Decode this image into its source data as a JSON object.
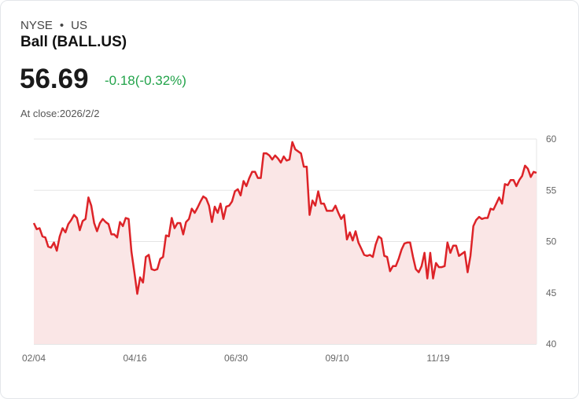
{
  "header": {
    "exchange": "NYSE",
    "separator": "•",
    "country": "US",
    "title": "Ball (BALL.US)",
    "price": "56.69",
    "change": "-0.18(-0.32%)",
    "close_label": "At close:2026/2/2"
  },
  "colors": {
    "line": "#dd2328",
    "fill": "#fae6e6",
    "change": "#22a34a"
  },
  "chart_data": {
    "type": "area",
    "title": "",
    "xlabel": "",
    "ylabel": "",
    "ylim": [
      40,
      60
    ],
    "yticks": [
      "60",
      "55",
      "50",
      "45",
      "40"
    ],
    "xticks": [
      "02/04",
      "04/16",
      "06/30",
      "09/10",
      "11/19"
    ],
    "grid": true,
    "values": [
      51.8,
      51.2,
      51.3,
      50.5,
      50.4,
      49.5,
      49.4,
      49.9,
      49.1,
      50.5,
      51.3,
      50.9,
      51.7,
      52.1,
      52.6,
      52.3,
      51.1,
      52.0,
      52.2,
      54.3,
      53.5,
      51.8,
      51.0,
      51.8,
      52.2,
      51.9,
      51.7,
      50.7,
      50.7,
      50.4,
      51.9,
      51.5,
      52.3,
      52.2,
      49.0,
      47.0,
      44.9,
      46.5,
      46.0,
      48.5,
      48.7,
      47.3,
      47.2,
      47.3,
      48.3,
      48.5,
      50.6,
      50.5,
      52.3,
      51.3,
      51.8,
      51.8,
      50.7,
      51.9,
      52.2,
      53.2,
      52.8,
      53.3,
      53.9,
      54.4,
      54.2,
      53.5,
      51.9,
      53.4,
      52.8,
      53.7,
      52.2,
      53.4,
      53.5,
      53.9,
      54.9,
      55.1,
      54.5,
      55.9,
      55.4,
      56.2,
      56.8,
      56.8,
      56.2,
      56.2,
      58.6,
      58.6,
      58.4,
      58.0,
      58.4,
      58.1,
      57.7,
      58.3,
      57.9,
      58.0,
      59.7,
      59.0,
      58.8,
      58.6,
      57.3,
      57.3,
      52.6,
      54.0,
      53.5,
      54.9,
      53.7,
      53.7,
      53.0,
      53.0,
      53.0,
      53.5,
      52.8,
      52.2,
      52.6,
      50.2,
      50.9,
      50.1,
      51.0,
      49.9,
      49.3,
      48.7,
      48.6,
      48.7,
      48.5,
      49.7,
      50.5,
      50.3,
      48.6,
      48.5,
      47.1,
      47.6,
      47.6,
      48.3,
      49.2,
      49.8,
      49.9,
      49.9,
      48.5,
      47.3,
      47.0,
      47.6,
      48.9,
      46.4,
      48.9,
      46.4,
      47.9,
      47.5,
      47.5,
      47.6,
      49.9,
      48.9,
      49.6,
      49.6,
      48.6,
      48.8,
      49.0,
      47.0,
      48.6,
      51.5,
      52.1,
      52.4,
      52.2,
      52.3,
      52.3,
      53.2,
      53.1,
      53.7,
      54.3,
      53.7,
      55.6,
      55.5,
      56.0,
      56.0,
      55.4,
      56.0,
      56.4,
      57.4,
      57.1,
      56.3,
      56.8,
      56.7
    ]
  }
}
